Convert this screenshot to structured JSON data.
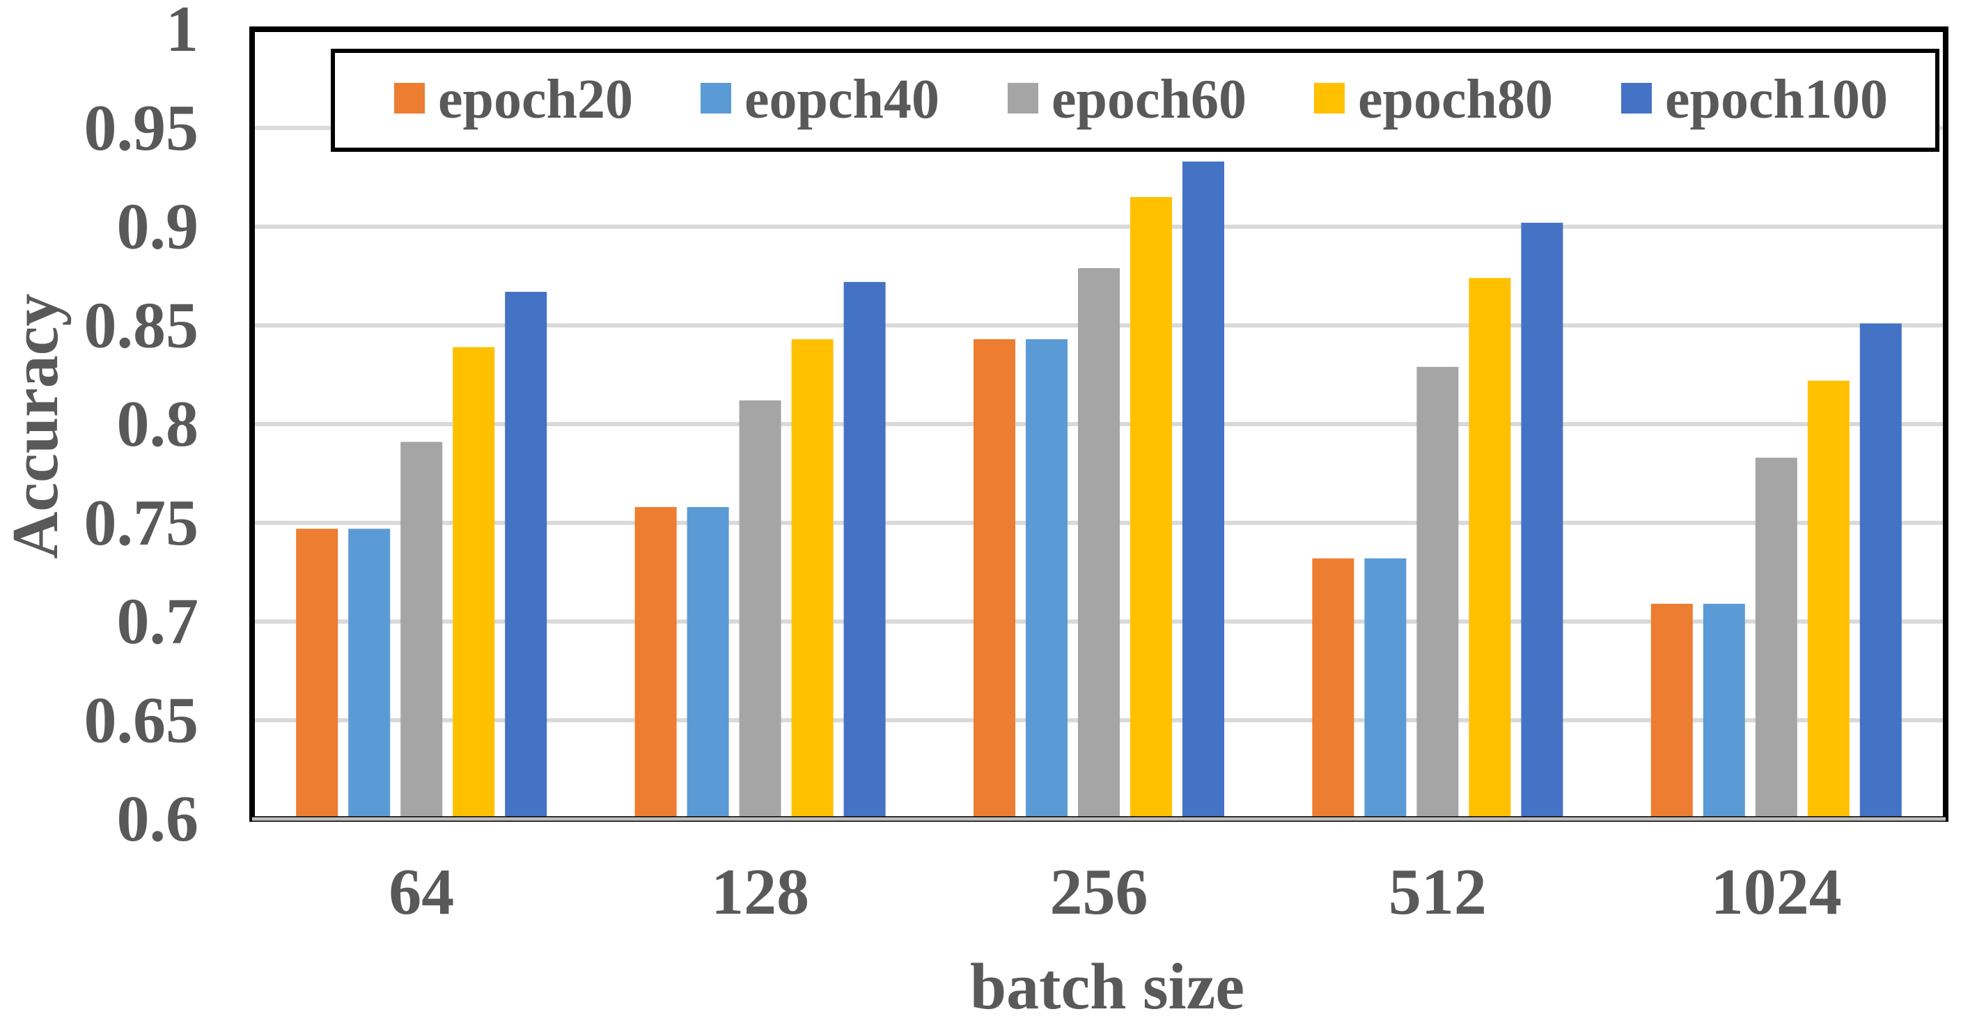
{
  "chart_data": {
    "type": "bar",
    "title": "",
    "xlabel": "batch size",
    "ylabel": "Accuracy",
    "ylim": [
      0.6,
      1.0
    ],
    "yticks": [
      "0.6",
      "0.65",
      "0.7",
      "0.75",
      "0.8",
      "0.85",
      "0.9",
      "0.95",
      "1"
    ],
    "ytick_values": [
      0.6,
      0.65,
      0.7,
      0.75,
      0.8,
      0.85,
      0.9,
      0.95,
      1.0
    ],
    "grid": true,
    "legend_position": "top",
    "categories": [
      "64",
      "128",
      "256",
      "512",
      "1024"
    ],
    "series": [
      {
        "name": "epoch20",
        "color": "#ED7D31",
        "values": [
          0.747,
          0.758,
          0.843,
          0.732,
          0.709
        ]
      },
      {
        "name": "eopch40",
        "color": "#5B9BD5",
        "values": [
          0.747,
          0.758,
          0.843,
          0.732,
          0.709
        ]
      },
      {
        "name": "epoch60",
        "color": "#A5A5A5",
        "values": [
          0.791,
          0.812,
          0.879,
          0.829,
          0.783
        ]
      },
      {
        "name": "epoch80",
        "color": "#FFC000",
        "values": [
          0.839,
          0.843,
          0.915,
          0.874,
          0.822
        ]
      },
      {
        "name": "epoch100",
        "color": "#4472C4",
        "values": [
          0.867,
          0.872,
          0.933,
          0.902,
          0.851
        ]
      }
    ]
  }
}
